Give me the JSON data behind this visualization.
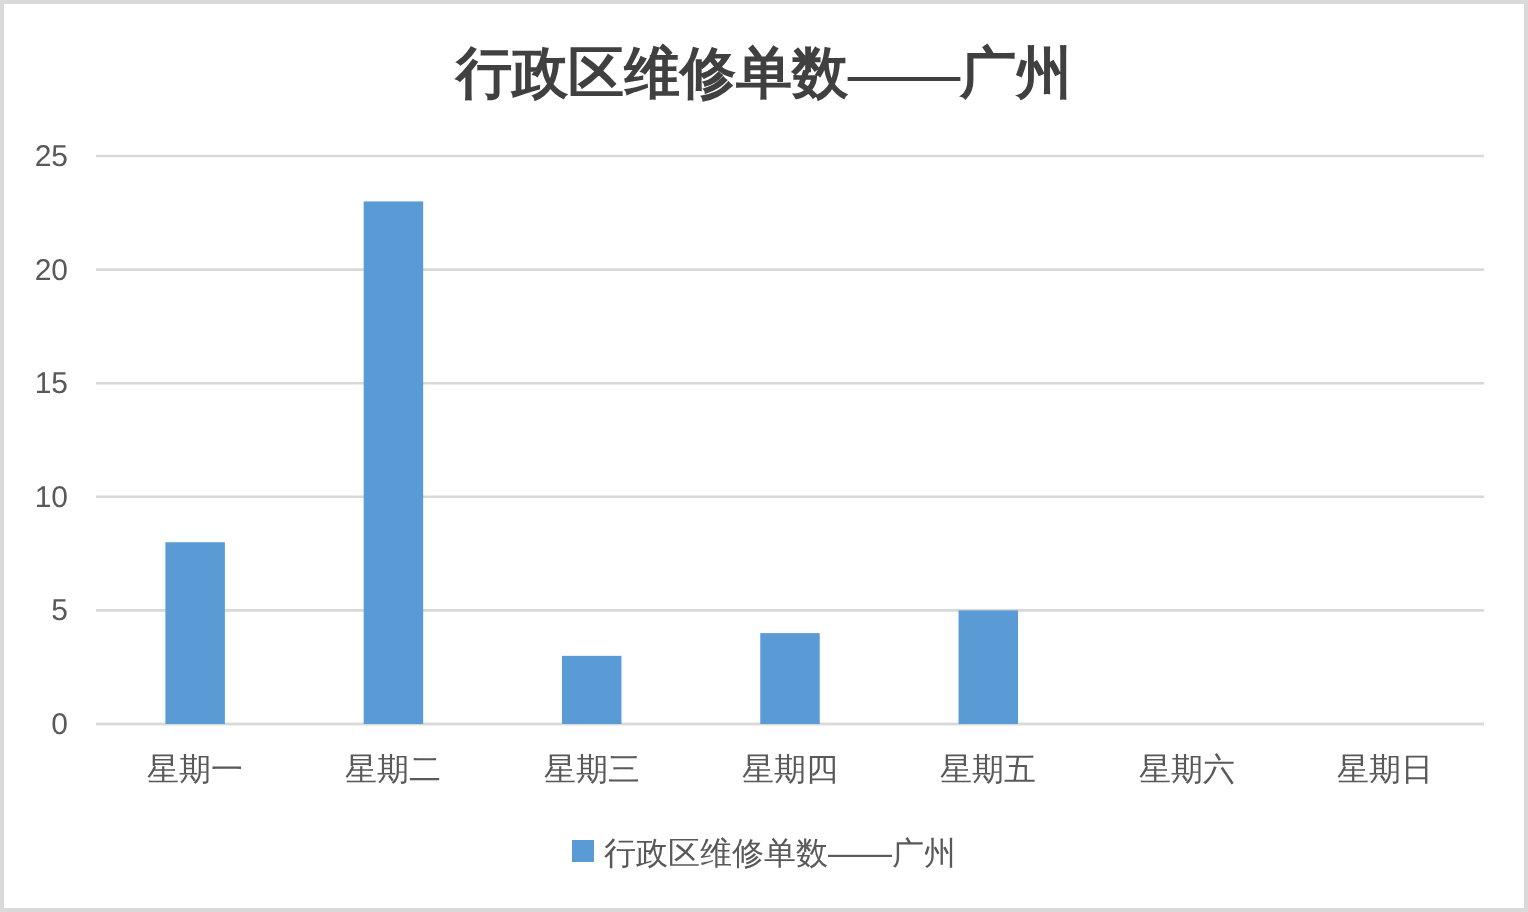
{
  "chart_data": {
    "type": "bar",
    "title": "行政区维修单数——广州",
    "categories": [
      "星期一",
      "星期二",
      "星期三",
      "星期四",
      "星期五",
      "星期六",
      "星期日"
    ],
    "series": [
      {
        "name": "行政区维修单数——广州",
        "color": "#5b9bd5",
        "values": [
          8,
          23,
          3,
          4,
          5,
          0,
          0
        ]
      }
    ],
    "ylim": [
      0,
      25
    ],
    "yticks": [
      0,
      5,
      10,
      15,
      20,
      25
    ],
    "grid": "y",
    "legend": "bottom"
  }
}
